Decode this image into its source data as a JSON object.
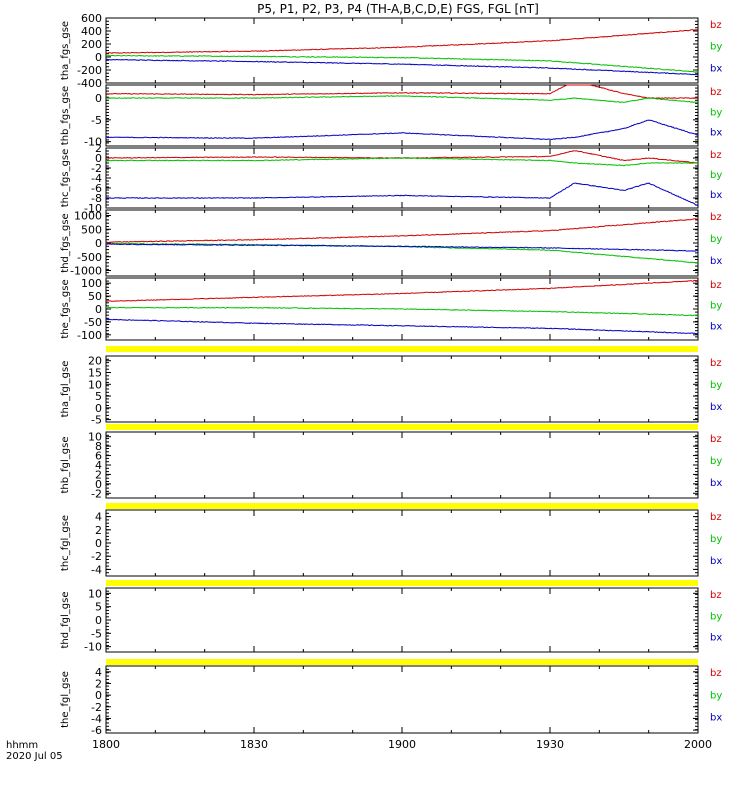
{
  "title": "P5, P1, P2, P3, P4 (TH-A,B,C,D,E) FGS, FGL [nT]",
  "time_axis": {
    "label_line1": "hhmm",
    "label_line2": "2020 Jul 05",
    "tick_labels": [
      "1800",
      "1830",
      "1900",
      "1930",
      "2000"
    ]
  },
  "legend_labels": [
    "bz",
    "by",
    "bx"
  ],
  "colors": {
    "bz": "#d00000",
    "by": "#00c000",
    "bx": "#0000c0",
    "gap_bar": "#ffff00",
    "frame": "#000000"
  },
  "chart_data": [
    {
      "type": "line",
      "name": "tha_fgs_gse",
      "ylim": [
        -400,
        600
      ],
      "y_ticks": [
        "600",
        "400",
        "200",
        "0",
        "-200",
        "-400"
      ],
      "x": [
        1800,
        1830,
        1900,
        1930,
        2000
      ],
      "series": [
        {
          "name": "bz",
          "values": [
            60,
            90,
            150,
            250,
            420
          ]
        },
        {
          "name": "by",
          "values": [
            20,
            10,
            -10,
            -60,
            -230
          ]
        },
        {
          "name": "bx",
          "values": [
            -40,
            -70,
            -110,
            -170,
            -270
          ]
        }
      ]
    },
    {
      "type": "line",
      "name": "thb_fgs_gse",
      "ylim": [
        -11,
        3
      ],
      "y_ticks": [
        "0",
        "-5",
        "-10"
      ],
      "x": [
        1800,
        1830,
        1900,
        1930,
        1935,
        1945,
        1950,
        2000
      ],
      "series": [
        {
          "name": "bz",
          "values": [
            1,
            0.8,
            1.2,
            1,
            4,
            1,
            0,
            0
          ]
        },
        {
          "name": "by",
          "values": [
            0,
            0,
            0.5,
            -0.5,
            0,
            -1,
            0,
            -1
          ]
        },
        {
          "name": "bx",
          "values": [
            -9,
            -9.2,
            -8,
            -9.5,
            -9,
            -7,
            -5,
            -8.5
          ]
        }
      ]
    },
    {
      "type": "line",
      "name": "thc_fgs_gse",
      "ylim": [
        -10,
        2
      ],
      "y_ticks": [
        "2",
        "0",
        "-2",
        "-4",
        "-6",
        "-8",
        "-10"
      ],
      "x": [
        1800,
        1830,
        1900,
        1930,
        1935,
        1945,
        1950,
        2000
      ],
      "series": [
        {
          "name": "bz",
          "values": [
            0,
            0.2,
            0,
            0.3,
            1.5,
            -0.5,
            0,
            -1
          ]
        },
        {
          "name": "by",
          "values": [
            -0.5,
            -0.5,
            0,
            -0.5,
            -1,
            -1.5,
            -1,
            -1
          ]
        },
        {
          "name": "bx",
          "values": [
            -8,
            -8,
            -7.5,
            -8,
            -5,
            -6.5,
            -5,
            -9.5
          ]
        }
      ]
    },
    {
      "type": "line",
      "name": "thd_fgs_gse",
      "ylim": [
        -1200,
        1200
      ],
      "y_ticks": [
        "1000",
        "500",
        "0",
        "-500",
        "-1000"
      ],
      "x": [
        1800,
        1830,
        1900,
        1930,
        2000
      ],
      "series": [
        {
          "name": "bz",
          "values": [
            30,
            120,
            260,
            450,
            880
          ]
        },
        {
          "name": "by",
          "values": [
            -20,
            -60,
            -130,
            -260,
            -720
          ]
        },
        {
          "name": "bx",
          "values": [
            -40,
            -80,
            -120,
            -180,
            -290
          ]
        }
      ]
    },
    {
      "type": "line",
      "name": "the_fgs_gse",
      "ylim": [
        -120,
        120
      ],
      "y_ticks": [
        "100",
        "50",
        "0",
        "-50",
        "-100"
      ],
      "x": [
        1800,
        1830,
        1900,
        1930,
        2000
      ],
      "series": [
        {
          "name": "bz",
          "values": [
            30,
            45,
            60,
            80,
            110
          ]
        },
        {
          "name": "by",
          "values": [
            5,
            5,
            0,
            -10,
            -25
          ]
        },
        {
          "name": "bx",
          "values": [
            -40,
            -55,
            -65,
            -75,
            -95
          ]
        }
      ]
    },
    {
      "type": "line",
      "name": "tha_fgl_gse",
      "ylim": [
        -6,
        22
      ],
      "y_ticks": [
        "20",
        "15",
        "10",
        "5",
        "0",
        "-5"
      ],
      "x": [],
      "series": []
    },
    {
      "type": "line",
      "name": "thb_fgl_gse",
      "ylim": [
        -3,
        11
      ],
      "y_ticks": [
        "10",
        "8",
        "6",
        "4",
        "2",
        "0",
        "-2"
      ],
      "x": [],
      "series": []
    },
    {
      "type": "line",
      "name": "thc_fgl_gse",
      "ylim": [
        -5,
        5
      ],
      "y_ticks": [
        "4",
        "2",
        "0",
        "-2",
        "-4"
      ],
      "x": [],
      "series": []
    },
    {
      "type": "line",
      "name": "thd_fgl_gse",
      "ylim": [
        -12,
        12
      ],
      "y_ticks": [
        "10",
        "5",
        "0",
        "-5",
        "-10"
      ],
      "x": [],
      "series": []
    },
    {
      "type": "line",
      "name": "the_fgl_gse",
      "ylim": [
        -6.5,
        5
      ],
      "y_ticks": [
        "4",
        "2",
        "0",
        "-2",
        "-4",
        "-6"
      ],
      "x": [],
      "series": []
    }
  ]
}
